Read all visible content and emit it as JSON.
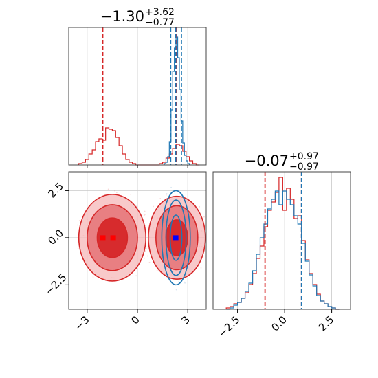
{
  "chart_data": {
    "type": "corner",
    "colors": {
      "red": "#d62728",
      "blue": "#1f77b4",
      "marker_red": "#ff0000",
      "marker_blue": "#0000ff"
    },
    "parameters": [
      {
        "title_main": "−1.30",
        "title_sup": "+3.62",
        "title_sub": "−0.77",
        "range": [
          -4.1,
          4.1
        ],
        "ticks": [
          -3,
          0,
          3
        ],
        "tick_labels": [
          "−3",
          "0",
          "3"
        ]
      },
      {
        "title_main": "−0.07",
        "title_sup": "+0.97",
        "title_sub": "−0.97",
        "range": [
          -3.8,
          3.5
        ],
        "ticks": [
          -2.5,
          0.0,
          2.5
        ],
        "tick_labels": [
          "−2.5",
          "0.0",
          "2.5"
        ]
      }
    ],
    "panels": [
      {
        "kind": "hist1d",
        "param": 0,
        "ylim": [
          0,
          1.0
        ],
        "series": [
          {
            "name": "red",
            "color": "red",
            "bins": [
              -3.5,
              -3.3,
              -3.1,
              -2.9,
              -2.7,
              -2.5,
              -2.3,
              -2.1,
              -1.9,
              -1.7,
              -1.5,
              -1.3,
              -1.1,
              -0.9,
              -0.7,
              -0.5,
              -0.3,
              -0.1,
              0.1,
              0.3,
              0.5,
              0.7,
              0.9,
              1.1,
              1.3,
              1.5,
              1.7,
              1.9,
              2.1,
              2.3,
              2.5,
              2.7,
              2.9,
              3.1,
              3.3,
              3.5,
              3.7
            ],
            "counts": [
              0.01,
              0.02,
              0.04,
              0.08,
              0.11,
              0.17,
              0.19,
              0.18,
              0.27,
              0.26,
              0.25,
              0.2,
              0.14,
              0.08,
              0.04,
              0.02,
              0.01,
              0.0,
              0.0,
              0.0,
              0.0,
              0.0,
              0.0,
              0.0,
              0.01,
              0.02,
              0.05,
              0.08,
              0.12,
              0.15,
              0.14,
              0.1,
              0.06,
              0.03,
              0.01,
              0.0
            ]
          },
          {
            "name": "blue",
            "color": "blue",
            "bins": [
              1.6,
              1.7,
              1.8,
              1.9,
              2.0,
              2.1,
              2.2,
              2.3,
              2.4,
              2.5,
              2.6,
              2.7,
              2.8,
              2.9,
              3.0,
              3.1
            ],
            "counts": [
              0.01,
              0.02,
              0.06,
              0.17,
              0.4,
              0.68,
              0.85,
              0.93,
              0.78,
              0.55,
              0.32,
              0.16,
              0.07,
              0.03,
              0.01
            ]
          }
        ],
        "vlines": [
          {
            "x": -2.07,
            "color": "red"
          },
          {
            "x": 2.32,
            "color": "red"
          },
          {
            "x": 1.98,
            "color": "blue"
          },
          {
            "x": 2.28,
            "color": "blue"
          },
          {
            "x": 2.62,
            "color": "blue"
          }
        ]
      },
      {
        "kind": "hist1d",
        "param": 1,
        "ylim": [
          0,
          1.0
        ],
        "series": [
          {
            "name": "red",
            "color": "red",
            "bins": [
              -3.1,
              -2.9,
              -2.7,
              -2.5,
              -2.3,
              -2.1,
              -1.9,
              -1.7,
              -1.5,
              -1.3,
              -1.1,
              -0.9,
              -0.7,
              -0.5,
              -0.3,
              -0.1,
              0.1,
              0.3,
              0.5,
              0.7,
              0.9,
              1.1,
              1.3,
              1.5,
              1.7,
              1.9,
              2.1,
              2.3,
              2.5,
              2.7,
              2.9
            ],
            "counts": [
              0.01,
              0.02,
              0.04,
              0.05,
              0.08,
              0.12,
              0.18,
              0.26,
              0.37,
              0.46,
              0.6,
              0.72,
              0.78,
              0.85,
              0.96,
              0.72,
              0.88,
              0.8,
              0.66,
              0.68,
              0.5,
              0.36,
              0.26,
              0.18,
              0.11,
              0.06,
              0.04,
              0.02,
              0.01,
              0.0
            ]
          },
          {
            "name": "blue",
            "color": "blue",
            "bins": [
              -3.1,
              -2.9,
              -2.7,
              -2.5,
              -2.3,
              -2.1,
              -1.9,
              -1.7,
              -1.5,
              -1.3,
              -1.1,
              -0.9,
              -0.7,
              -0.5,
              -0.3,
              -0.1,
              0.1,
              0.3,
              0.5,
              0.7,
              0.9,
              1.1,
              1.3,
              1.5,
              1.7,
              1.9,
              2.1,
              2.3,
              2.5,
              2.7,
              2.9
            ],
            "counts": [
              0.0,
              0.01,
              0.03,
              0.05,
              0.08,
              0.13,
              0.19,
              0.28,
              0.4,
              0.52,
              0.62,
              0.73,
              0.8,
              0.86,
              0.76,
              0.86,
              0.8,
              0.76,
              0.68,
              0.62,
              0.48,
              0.35,
              0.25,
              0.17,
              0.1,
              0.06,
              0.04,
              0.02,
              0.01,
              0.0
            ]
          }
        ],
        "vlines": [
          {
            "x": -1.04,
            "color": "red"
          },
          {
            "x": 0.9,
            "color": "red"
          },
          {
            "x": 0.9,
            "color": "blue"
          }
        ]
      },
      {
        "kind": "contour2d",
        "px": 0,
        "py": 1,
        "modes": [
          {
            "color": "red",
            "cx": -1.5,
            "cy": 0.0,
            "rx": [
              2.0,
              1.5,
              0.9
            ],
            "ry": [
              2.3,
              1.75,
              1.05
            ],
            "filled": true
          },
          {
            "color": "red",
            "cx": 2.35,
            "cy": 0.0,
            "rx": [
              1.7,
              1.25,
              0.65
            ],
            "ry": [
              2.2,
              1.7,
              0.95
            ],
            "filled": true
          },
          {
            "color": "blue",
            "cx": 2.3,
            "cy": 0.0,
            "rx": [
              0.85,
              0.6,
              0.35
            ],
            "ry": [
              2.5,
              2.0,
              1.2
            ],
            "filled": false
          }
        ],
        "markers": [
          {
            "x": -2.07,
            "y": 0.0,
            "color": "marker_red"
          },
          {
            "x": -1.45,
            "y": 0.0,
            "color": "marker_red"
          },
          {
            "x": 2.28,
            "y": 0.0,
            "color": "marker_blue"
          }
        ]
      }
    ]
  }
}
